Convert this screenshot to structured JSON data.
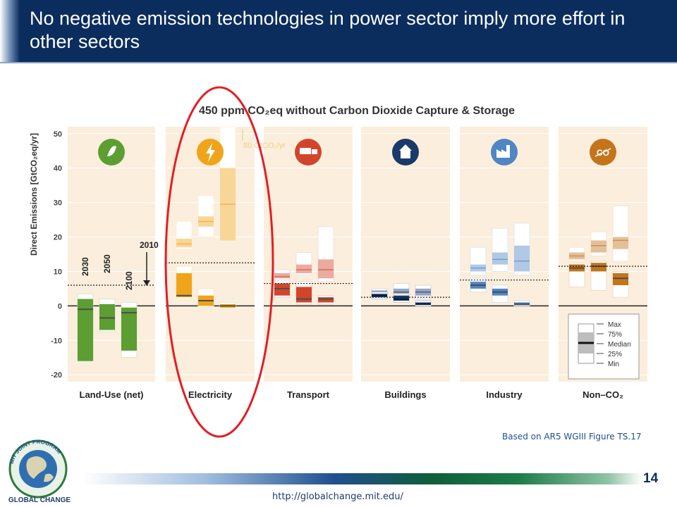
{
  "slide": {
    "title": "No negative emission technologies in power sector imply more effort in other sectors",
    "source_note": "Based on AR5 WGIII Figure TS.17",
    "page_number": "14",
    "url": "http://globalchange.mit.edu/",
    "logo": {
      "ring_text": "MIT JOINT PROGRAM",
      "caption": "GLOBAL CHANGE"
    }
  },
  "colors": {
    "title_bar": "#0b2d5e",
    "panel_bg": "#fbeedc",
    "landuse": "#5c9e32",
    "electricity": "#f0a419",
    "transport": "#d2452b",
    "buildings": "#1a3a6a",
    "industry": "#4f86c3",
    "nonco2": "#c4741b",
    "highlight_ellipse": "#e31e24"
  },
  "chart_data": {
    "type": "box",
    "title": "450 ppm CO₂eq without Carbon Dioxide Capture & Storage",
    "ylabel": "Direct Emissions [GtCO₂eq/yr]",
    "ylim": [
      -22,
      52
    ],
    "yticks": [
      50,
      40,
      30,
      20,
      10,
      0,
      -10,
      -20
    ],
    "year_labels": [
      "2030",
      "2050",
      "2100"
    ],
    "marker_2010": "2010",
    "offscale_note": "80 GtCO₂/yr",
    "legend": {
      "items": [
        "Max",
        "75%",
        "Median",
        "25%",
        "Min"
      ]
    },
    "sectors": [
      {
        "name": "Land-Use (net)",
        "icon": "leaf-icon",
        "baseline_2010": 6,
        "boxes": [
          {
            "year": "2030",
            "min": -16,
            "q1": -16,
            "median": -1,
            "q3": 2,
            "max": 3.5
          },
          {
            "year": "2050",
            "min": -7.5,
            "q1": -7,
            "median": -3.5,
            "q3": 0.5,
            "max": 2
          },
          {
            "year": "2100",
            "min": -15,
            "q1": -13,
            "median": -2,
            "q3": -0.5,
            "max": 1
          }
        ]
      },
      {
        "name": "Electricity",
        "icon": "lightning-icon",
        "baseline_2010": 12.5,
        "boxes": [
          {
            "year": "2030",
            "min": 2,
            "q1": 2.5,
            "median": 3,
            "q3": 9.5,
            "max": 11.5
          },
          {
            "year": "2050",
            "min": -0.5,
            "q1": 0,
            "median": 1.5,
            "q3": 3,
            "max": 5
          },
          {
            "year": "2100",
            "min": -0.5,
            "q1": -0.5,
            "median": 0,
            "q3": 0.5,
            "max": 1
          }
        ],
        "baseline_boxes": [
          {
            "year": "2030",
            "min": 16.5,
            "q1": 17,
            "median": 18,
            "q3": 19.5,
            "max": 24.5
          },
          {
            "year": "2050",
            "min": 20,
            "q1": 23,
            "median": 24.5,
            "q3": 26,
            "max": 32
          },
          {
            "year": "2100",
            "min": 19,
            "q1": 19,
            "median": 29.5,
            "q3": 40,
            "max": 80
          }
        ]
      },
      {
        "name": "Transport",
        "icon": "truck-icon",
        "baseline_2010": 6.5,
        "boxes": [
          {
            "year": "2030",
            "min": 2.5,
            "q1": 3,
            "median": 5,
            "q3": 6.5,
            "max": 7.5
          },
          {
            "year": "2050",
            "min": 0.5,
            "q1": 1,
            "median": 2,
            "q3": 5.5,
            "max": 7
          },
          {
            "year": "2100",
            "min": 0.5,
            "q1": 1,
            "median": 2,
            "q3": 2.5,
            "max": 3
          }
        ],
        "baseline_boxes": [
          {
            "year": "2030",
            "min": 7.5,
            "q1": 8,
            "median": 8.5,
            "q3": 9.5,
            "max": 10.5
          },
          {
            "year": "2050",
            "min": 9,
            "q1": 9.5,
            "median": 10.5,
            "q3": 12,
            "max": 15.5
          },
          {
            "year": "2100",
            "min": 7,
            "q1": 8,
            "median": 10.5,
            "q3": 13.5,
            "max": 23
          }
        ]
      },
      {
        "name": "Buildings",
        "icon": "house-icon",
        "baseline_2010": 2.5,
        "boxes": [
          {
            "year": "2030",
            "min": 2,
            "q1": 2.5,
            "median": 3,
            "q3": 3.5,
            "max": 4
          },
          {
            "year": "2050",
            "min": 1,
            "q1": 1.5,
            "median": 2,
            "q3": 3,
            "max": 3.5
          },
          {
            "year": "2100",
            "min": 0,
            "q1": 0.3,
            "median": 0.5,
            "q3": 1,
            "max": 1.5
          }
        ],
        "baseline_boxes": [
          {
            "year": "2030",
            "min": 3,
            "q1": 3.5,
            "median": 4,
            "q3": 4.5,
            "max": 5
          },
          {
            "year": "2050",
            "min": 3,
            "q1": 3.5,
            "median": 4,
            "q3": 5,
            "max": 6.5
          },
          {
            "year": "2100",
            "min": 2,
            "q1": 3,
            "median": 4,
            "q3": 5,
            "max": 6
          }
        ]
      },
      {
        "name": "Industry",
        "icon": "factory-icon",
        "baseline_2010": 7.5,
        "boxes": [
          {
            "year": "2030",
            "min": 4,
            "q1": 5,
            "median": 6,
            "q3": 7,
            "max": 8
          },
          {
            "year": "2050",
            "min": 1,
            "q1": 3,
            "median": 4,
            "q3": 5,
            "max": 6
          },
          {
            "year": "2100",
            "min": 0,
            "q1": 0.2,
            "median": 0.5,
            "q3": 1,
            "max": 1.5
          }
        ],
        "baseline_boxes": [
          {
            "year": "2030",
            "min": 9,
            "q1": 10,
            "median": 11,
            "q3": 12,
            "max": 17
          },
          {
            "year": "2050",
            "min": 10,
            "q1": 12,
            "median": 13.5,
            "q3": 15.5,
            "max": 22.5
          },
          {
            "year": "2100",
            "min": 9,
            "q1": 10,
            "median": 13,
            "q3": 17.5,
            "max": 24
          }
        ]
      },
      {
        "name": "Non–CO₂",
        "icon": "co2-icon",
        "baseline_2010": 11.5,
        "boxes": [
          {
            "year": "2030",
            "min": 5.5,
            "q1": 10,
            "median": 11,
            "q3": 12,
            "max": 12
          },
          {
            "year": "2050",
            "min": 4.5,
            "q1": 10,
            "median": 11.5,
            "q3": 12.5,
            "max": 13
          },
          {
            "year": "2100",
            "min": 2.5,
            "q1": 6,
            "median": 8,
            "q3": 9.5,
            "max": 10
          }
        ],
        "baseline_boxes": [
          {
            "year": "2030",
            "min": 13,
            "q1": 13.5,
            "median": 14.5,
            "q3": 15.5,
            "max": 17
          },
          {
            "year": "2050",
            "min": 14.5,
            "q1": 15.5,
            "median": 17.5,
            "q3": 19,
            "max": 21.5
          },
          {
            "year": "2100",
            "min": 13,
            "q1": 16.5,
            "median": 19,
            "q3": 20,
            "max": 29
          }
        ]
      }
    ]
  }
}
